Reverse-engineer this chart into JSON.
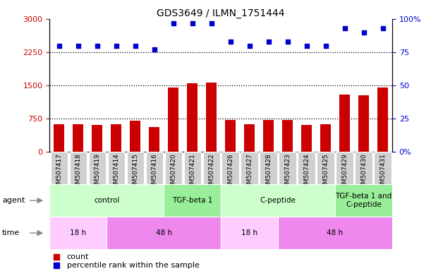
{
  "title": "GDS3649 / ILMN_1751444",
  "samples": [
    "GSM507417",
    "GSM507418",
    "GSM507419",
    "GSM507414",
    "GSM507415",
    "GSM507416",
    "GSM507420",
    "GSM507421",
    "GSM507422",
    "GSM507426",
    "GSM507427",
    "GSM507428",
    "GSM507423",
    "GSM507424",
    "GSM507425",
    "GSM507429",
    "GSM507430",
    "GSM507431"
  ],
  "bar_values": [
    620,
    620,
    610,
    630,
    700,
    560,
    1450,
    1550,
    1560,
    720,
    620,
    720,
    720,
    600,
    620,
    1300,
    1280,
    1450
  ],
  "dot_values": [
    80,
    80,
    80,
    80,
    80,
    77,
    97,
    97,
    97,
    83,
    80,
    83,
    83,
    80,
    80,
    93,
    90,
    93
  ],
  "bar_color": "#cc0000",
  "dot_color": "#0000cc",
  "ylim_left": [
    0,
    3000
  ],
  "ylim_right": [
    0,
    100
  ],
  "yticks_left": [
    0,
    750,
    1500,
    2250,
    3000
  ],
  "yticks_right": [
    0,
    25,
    50,
    75,
    100
  ],
  "ytick_labels_right": [
    "0%",
    "25",
    "50",
    "75",
    "100%"
  ],
  "gridlines": [
    750,
    1500,
    2250
  ],
  "agent_groups": [
    {
      "label": "control",
      "start": 0,
      "end": 6,
      "color": "#ccffcc"
    },
    {
      "label": "TGF-beta 1",
      "start": 6,
      "end": 9,
      "color": "#99ee99"
    },
    {
      "label": "C-peptide",
      "start": 9,
      "end": 15,
      "color": "#ccffcc"
    },
    {
      "label": "TGF-beta 1 and\nC-peptide",
      "start": 15,
      "end": 18,
      "color": "#99ee99"
    }
  ],
  "time_groups": [
    {
      "label": "18 h",
      "start": 0,
      "end": 3,
      "color": "#ffccff"
    },
    {
      "label": "48 h",
      "start": 3,
      "end": 9,
      "color": "#ee88ee"
    },
    {
      "label": "18 h",
      "start": 9,
      "end": 12,
      "color": "#ffccff"
    },
    {
      "label": "48 h",
      "start": 12,
      "end": 18,
      "color": "#ee88ee"
    }
  ],
  "legend_count_label": "count",
  "legend_pct_label": "percentile rank within the sample",
  "background_color": "#ffffff",
  "plot_bg_color": "#ffffff",
  "tick_bg_color": "#d0d0d0"
}
